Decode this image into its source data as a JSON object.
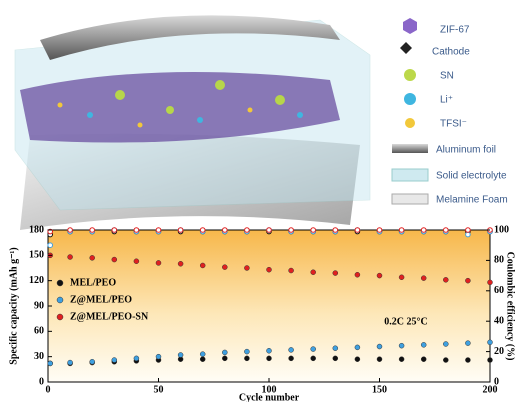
{
  "illustration": {
    "legend": [
      "ZIF-67",
      "Cathode",
      "SN",
      "Li⁺",
      "TFSI⁻",
      "Aluminum foil",
      "Solid electrolyte",
      "Melamine Foam"
    ]
  },
  "chart_data": {
    "type": "scatter",
    "x_label": "Cycle number",
    "y_label": "Specific capacity (mAh g⁻¹)",
    "y2_label": "Coulombic efficiency (%)",
    "annotation": "0.2C 25°C",
    "x": [
      1,
      10,
      20,
      30,
      40,
      50,
      60,
      70,
      80,
      90,
      100,
      110,
      120,
      130,
      140,
      150,
      160,
      170,
      180,
      190,
      200
    ],
    "series": [
      {
        "name": "MEL/PEO",
        "color": "#111111",
        "values": [
          22,
          22,
          23,
          24,
          25,
          26,
          27,
          27,
          28,
          28,
          28,
          28,
          28,
          28,
          27,
          27,
          27,
          27,
          26,
          26,
          26
        ],
        "ce_values": [
          97,
          99,
          99,
          99,
          99,
          99,
          99,
          99,
          99,
          99,
          99,
          99,
          99,
          99,
          99,
          99,
          99,
          99,
          99,
          99,
          99
        ]
      },
      {
        "name": "Z@MEL/PEO",
        "color": "#3fa0e0",
        "values": [
          22,
          23,
          24,
          26,
          28,
          30,
          32,
          33,
          35,
          36,
          37,
          38,
          39,
          40,
          41,
          42,
          43,
          44,
          45,
          46,
          47
        ],
        "ce_values": [
          90,
          99,
          99,
          100,
          99,
          99,
          100,
          99,
          99,
          99,
          100,
          99,
          99,
          99,
          100,
          99,
          99,
          99,
          99,
          97,
          99
        ]
      },
      {
        "name": "Z@MEL/PEO-SN",
        "color": "#e02020",
        "values": [
          150,
          148,
          147,
          145,
          143,
          141,
          140,
          138,
          136,
          135,
          133,
          132,
          130,
          129,
          127,
          126,
          124,
          123,
          121,
          120,
          118
        ],
        "ce_values": [
          99,
          100,
          100,
          100,
          100,
          100,
          100,
          100,
          100,
          100,
          100,
          100,
          100,
          100,
          100,
          100,
          100,
          100,
          100,
          100,
          100
        ]
      }
    ],
    "xlim": [
      0,
      200
    ],
    "xticks": [
      0,
      50,
      100,
      150,
      200
    ],
    "ylim": [
      0,
      180
    ],
    "yticks": [
      0,
      30,
      60,
      90,
      120,
      150,
      180
    ],
    "y2lim": [
      0,
      100
    ],
    "y2ticks": [
      0,
      20,
      40,
      60,
      80,
      100
    ]
  }
}
